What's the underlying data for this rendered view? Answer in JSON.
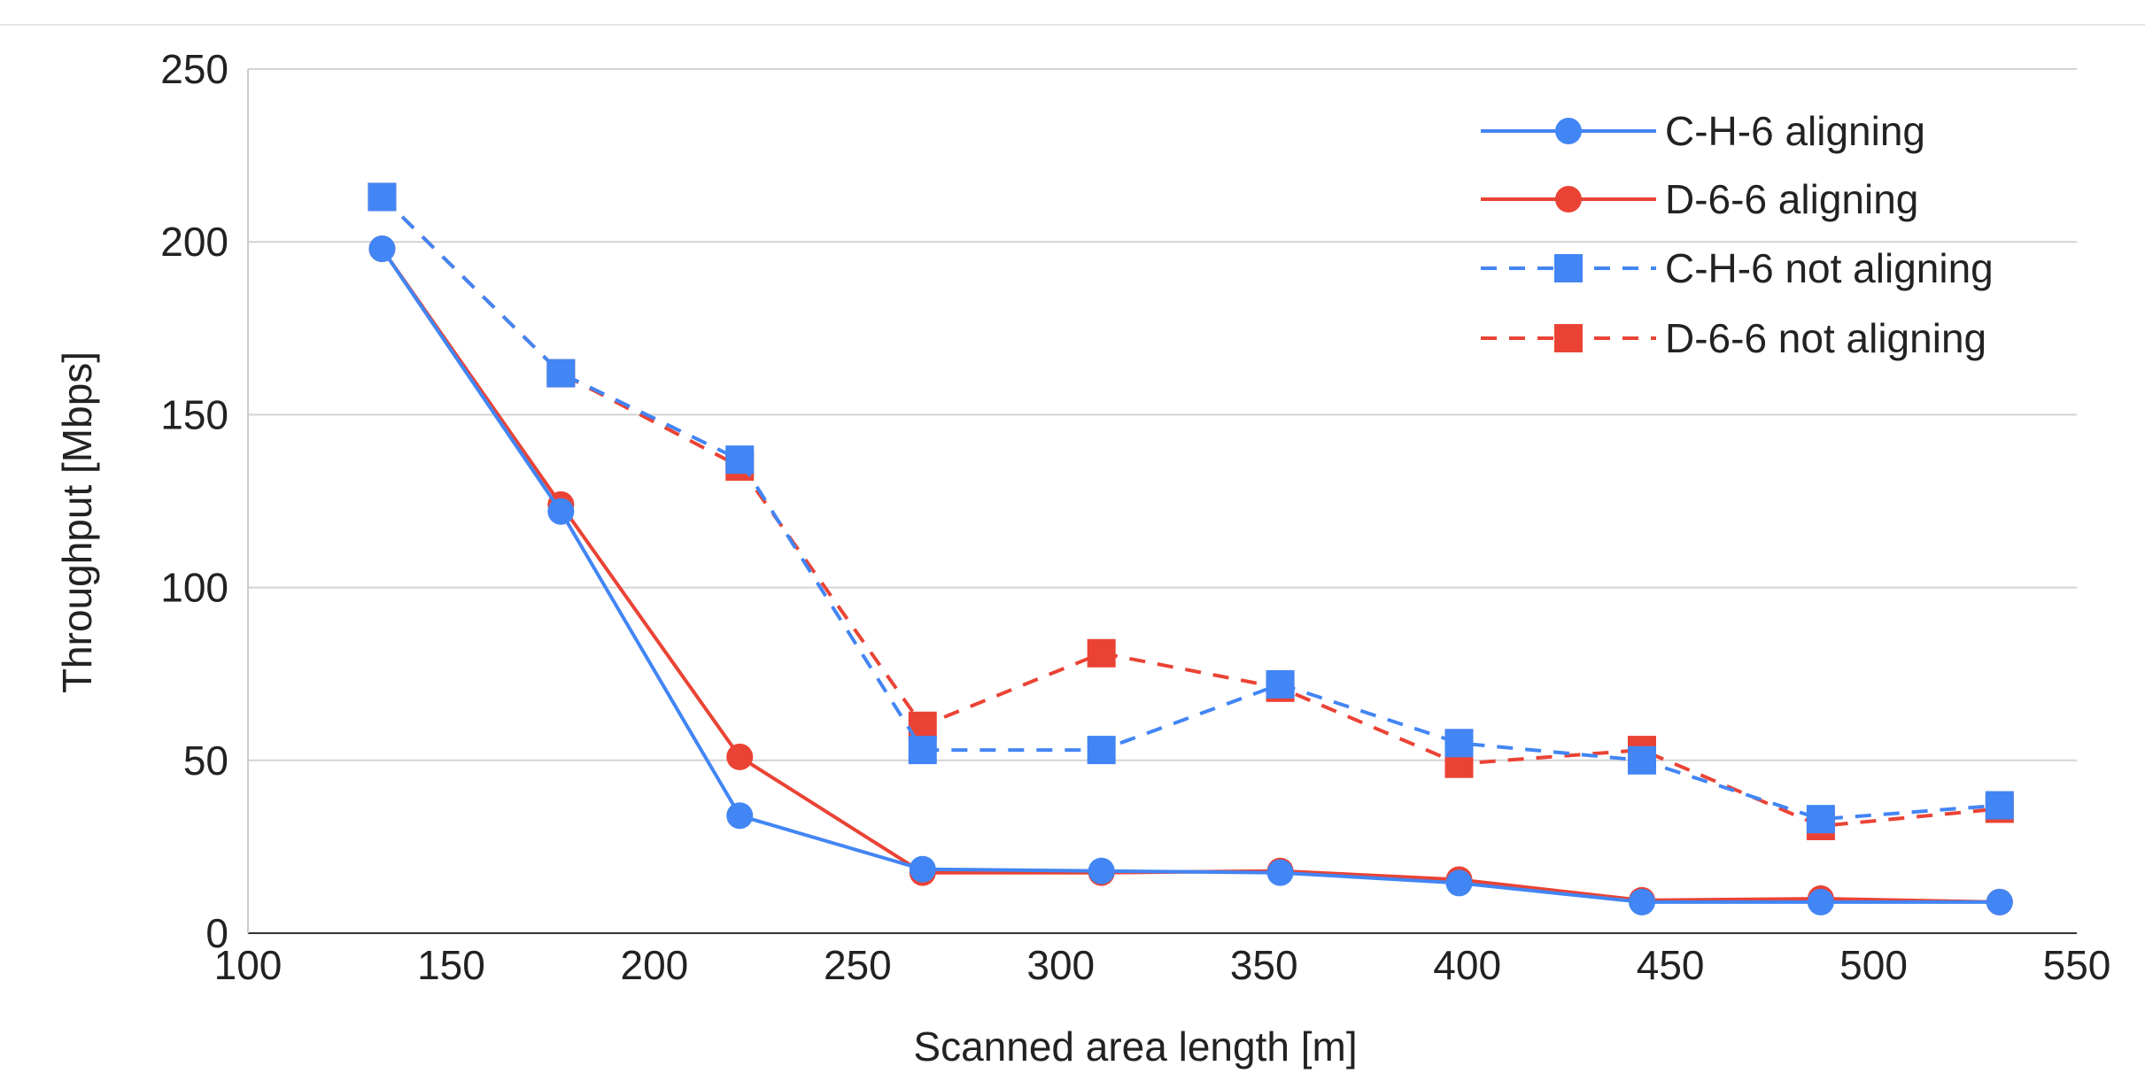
{
  "chart_data": {
    "type": "line",
    "title": "",
    "xlabel": "Scanned area length [m]",
    "ylabel": "Throughput [Mbps]",
    "xlim": [
      100,
      550
    ],
    "ylim": [
      0,
      250
    ],
    "xticks": [
      "100",
      "150",
      "200",
      "250",
      "300",
      "350",
      "400",
      "450",
      "500",
      "550"
    ],
    "yticks": [
      "0",
      "50",
      "100",
      "150",
      "200",
      "250"
    ],
    "grid": true,
    "legend_position": "top-right",
    "x": [
      133,
      177,
      221,
      266,
      310,
      354,
      398,
      443,
      487,
      531
    ],
    "series": [
      {
        "name": "C-H-6 aligning",
        "color": "#4285f4",
        "line": "solid",
        "marker": "circle",
        "values": [
          198,
          122,
          34,
          18.5,
          18,
          17.5,
          14.5,
          9,
          9,
          9
        ]
      },
      {
        "name": "D-6-6 aligning",
        "color": "#ea4335",
        "line": "solid",
        "marker": "circle",
        "values": [
          198,
          124,
          51,
          17.5,
          17.5,
          18,
          15.5,
          9.5,
          10,
          9
        ]
      },
      {
        "name": "C-H-6 not aligning",
        "color": "#4285f4",
        "line": "dashed",
        "marker": "square",
        "values": [
          213,
          162,
          137,
          53,
          53,
          72,
          55,
          50,
          33,
          37
        ]
      },
      {
        "name": "D-6-6 not aligning",
        "color": "#ea4335",
        "line": "dashed",
        "marker": "square",
        "values": [
          213,
          162,
          135,
          60,
          81,
          71,
          49,
          53,
          31,
          36
        ]
      }
    ]
  }
}
